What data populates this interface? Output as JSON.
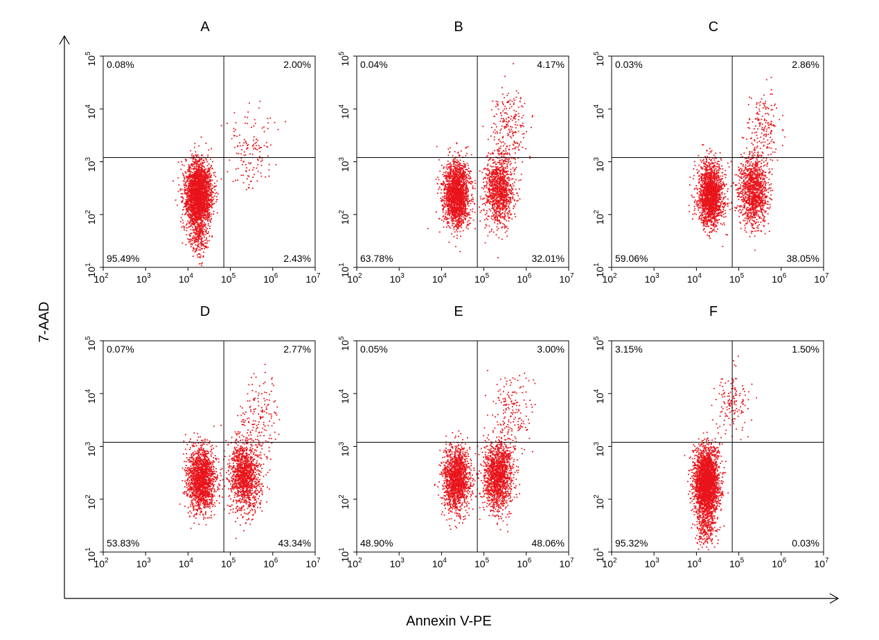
{
  "figure": {
    "xlabel": "Annexin V-PE",
    "ylabel": "7-AAD"
  },
  "chart_data": [
    {
      "type": "scatter",
      "title": "A",
      "xscale": "log",
      "yscale": "log",
      "xlim": [
        100,
        10000000
      ],
      "ylim": [
        10,
        100000
      ],
      "x_ticks": [
        "2",
        "3",
        "4",
        "5",
        "6",
        "7"
      ],
      "y_ticks": [
        "1",
        "2",
        "3",
        "4",
        "5"
      ],
      "gate": {
        "x": 70000,
        "y": 1200
      },
      "quadrants": {
        "upper_left": "0.08%",
        "upper_right": "2.00%",
        "lower_left": "95.49%",
        "lower_right": "2.43%"
      },
      "populations": [
        {
          "x": 17000,
          "y": 250,
          "count": 2600,
          "sx": 0.15,
          "sy": 0.3
        },
        {
          "x": 17000,
          "y": 40,
          "count": 250,
          "sx": 0.12,
          "sy": 0.22
        },
        {
          "x": 300000,
          "y": 1800,
          "count": 140,
          "sx": 0.24,
          "sy": 0.42
        }
      ]
    },
    {
      "type": "scatter",
      "title": "B",
      "xscale": "log",
      "yscale": "log",
      "xlim": [
        100,
        10000000
      ],
      "ylim": [
        10,
        100000
      ],
      "x_ticks": [
        "2",
        "3",
        "4",
        "5",
        "6",
        "7"
      ],
      "y_ticks": [
        "1",
        "2",
        "3",
        "4",
        "5"
      ],
      "gate": {
        "x": 70000,
        "y": 1200
      },
      "quadrants": {
        "upper_left": "0.04%",
        "upper_right": "4.17%",
        "lower_left": "63.78%",
        "lower_right": "32.01%"
      },
      "populations": [
        {
          "x": 22000,
          "y": 250,
          "count": 1900,
          "sx": 0.15,
          "sy": 0.3
        },
        {
          "x": 220000,
          "y": 300,
          "count": 1100,
          "sx": 0.17,
          "sy": 0.33
        },
        {
          "x": 400000,
          "y": 4500,
          "count": 220,
          "sx": 0.22,
          "sy": 0.38
        }
      ]
    },
    {
      "type": "scatter",
      "title": "C",
      "xscale": "log",
      "yscale": "log",
      "xlim": [
        100,
        10000000
      ],
      "ylim": [
        10,
        100000
      ],
      "x_ticks": [
        "2",
        "3",
        "4",
        "5",
        "6",
        "7"
      ],
      "y_ticks": [
        "1",
        "2",
        "3",
        "4",
        "5"
      ],
      "gate": {
        "x": 70000,
        "y": 1200
      },
      "quadrants": {
        "upper_left": "0.03%",
        "upper_right": "2.86%",
        "lower_left": "59.06%",
        "lower_right": "38.05%"
      },
      "populations": [
        {
          "x": 21000,
          "y": 250,
          "count": 1800,
          "sx": 0.15,
          "sy": 0.3
        },
        {
          "x": 220000,
          "y": 280,
          "count": 1200,
          "sx": 0.17,
          "sy": 0.33
        },
        {
          "x": 380000,
          "y": 5000,
          "count": 160,
          "sx": 0.18,
          "sy": 0.35
        }
      ]
    },
    {
      "type": "scatter",
      "title": "D",
      "xscale": "log",
      "yscale": "log",
      "xlim": [
        100,
        10000000
      ],
      "ylim": [
        10,
        100000
      ],
      "x_ticks": [
        "2",
        "3",
        "4",
        "5",
        "6",
        "7"
      ],
      "y_ticks": [
        "1",
        "2",
        "3",
        "4",
        "5"
      ],
      "gate": {
        "x": 70000,
        "y": 1200
      },
      "quadrants": {
        "upper_left": "0.07%",
        "upper_right": "2.77%",
        "lower_left": "53.83%",
        "lower_right": "43.34%"
      },
      "populations": [
        {
          "x": 20000,
          "y": 250,
          "count": 1600,
          "sx": 0.16,
          "sy": 0.3
        },
        {
          "x": 210000,
          "y": 280,
          "count": 1300,
          "sx": 0.18,
          "sy": 0.34
        },
        {
          "x": 500000,
          "y": 3500,
          "count": 160,
          "sx": 0.25,
          "sy": 0.38
        }
      ]
    },
    {
      "type": "scatter",
      "title": "E",
      "xscale": "log",
      "yscale": "log",
      "xlim": [
        100,
        10000000
      ],
      "ylim": [
        10,
        100000
      ],
      "x_ticks": [
        "2",
        "3",
        "4",
        "5",
        "6",
        "7"
      ],
      "y_ticks": [
        "1",
        "2",
        "3",
        "4",
        "5"
      ],
      "gate": {
        "x": 70000,
        "y": 1200
      },
      "quadrants": {
        "upper_left": "0.05%",
        "upper_right": "3.00%",
        "lower_left": "48.90%",
        "lower_right": "48.06%"
      },
      "populations": [
        {
          "x": 22000,
          "y": 250,
          "count": 1500,
          "sx": 0.16,
          "sy": 0.3
        },
        {
          "x": 210000,
          "y": 280,
          "count": 1450,
          "sx": 0.17,
          "sy": 0.33
        },
        {
          "x": 450000,
          "y": 4000,
          "count": 180,
          "sx": 0.22,
          "sy": 0.38
        }
      ]
    },
    {
      "type": "scatter",
      "title": "F",
      "xscale": "log",
      "yscale": "log",
      "xlim": [
        100,
        10000000
      ],
      "ylim": [
        10,
        100000
      ],
      "x_ticks": [
        "2",
        "3",
        "4",
        "5",
        "6",
        "7"
      ],
      "y_ticks": [
        "1",
        "2",
        "3",
        "4",
        "5"
      ],
      "gate": {
        "x": 70000,
        "y": 1200
      },
      "quadrants": {
        "upper_left": "3.15%",
        "upper_right": "1.50%",
        "lower_left": "95.32%",
        "lower_right": "0.03%"
      },
      "populations": [
        {
          "x": 17000,
          "y": 220,
          "count": 2600,
          "sx": 0.14,
          "sy": 0.32
        },
        {
          "x": 16000,
          "y": 35,
          "count": 300,
          "sx": 0.12,
          "sy": 0.2
        },
        {
          "x": 70000,
          "y": 7000,
          "count": 140,
          "sx": 0.2,
          "sy": 0.3
        }
      ]
    }
  ]
}
